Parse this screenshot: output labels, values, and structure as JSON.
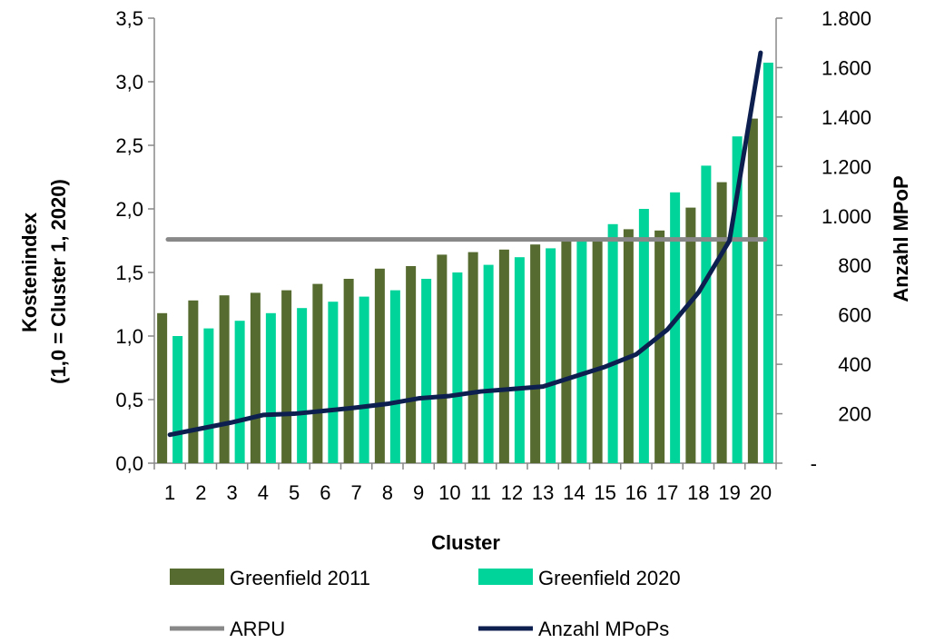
{
  "chart_data": {
    "type": "bar",
    "xlabel": "Cluster",
    "ylabel_lines": [
      "Kostenindex",
      "(1,0 = Cluster 1, 2020)"
    ],
    "y2label": "Anzahl MPoP",
    "categories": [
      "1",
      "2",
      "3",
      "4",
      "5",
      "6",
      "7",
      "8",
      "9",
      "10",
      "11",
      "12",
      "13",
      "14",
      "15",
      "16",
      "17",
      "18",
      "19",
      "20"
    ],
    "ylim": [
      0,
      3.5
    ],
    "y2lim": [
      0,
      1800
    ],
    "yticks": [
      0,
      0.5,
      1.0,
      1.5,
      2.0,
      2.5,
      3.0,
      3.5
    ],
    "ytick_labels": [
      "0,0",
      "0,5",
      "1,0",
      "1,5",
      "2,0",
      "2,5",
      "3,0",
      "3,5"
    ],
    "y2ticks": [
      0,
      200,
      400,
      600,
      800,
      1000,
      1200,
      1400,
      1600,
      1800
    ],
    "y2tick_labels": [
      "-",
      "200",
      "400",
      "600",
      "800",
      "1.000",
      "1.200",
      "1.400",
      "1.600",
      "1.800"
    ],
    "grid": false,
    "legend_placement": "bottom",
    "series": [
      {
        "name": "Greenfield 2011",
        "kind": "bar",
        "axis": "left",
        "color": "#556b2f",
        "values": [
          1.18,
          1.28,
          1.32,
          1.34,
          1.36,
          1.41,
          1.45,
          1.53,
          1.55,
          1.64,
          1.66,
          1.68,
          1.72,
          1.75,
          1.76,
          1.84,
          1.83,
          2.01,
          2.21,
          2.71
        ]
      },
      {
        "name": "Greenfield 2020",
        "kind": "bar",
        "axis": "left",
        "color": "#00d49a",
        "values": [
          1.0,
          1.06,
          1.12,
          1.18,
          1.22,
          1.27,
          1.31,
          1.36,
          1.45,
          1.5,
          1.56,
          1.62,
          1.69,
          1.77,
          1.88,
          2.0,
          2.13,
          2.34,
          2.57,
          3.15
        ]
      },
      {
        "name": "ARPU",
        "kind": "line",
        "axis": "left",
        "color": "#888888",
        "values": [
          1.76,
          1.76,
          1.76,
          1.76,
          1.76,
          1.76,
          1.76,
          1.76,
          1.76,
          1.76,
          1.76,
          1.76,
          1.76,
          1.76,
          1.76,
          1.76,
          1.76,
          1.76,
          1.76,
          1.76
        ]
      },
      {
        "name": "Anzahl MPoPs",
        "kind": "line",
        "axis": "right",
        "color": "#0d1f4f",
        "values": [
          115,
          140,
          165,
          195,
          200,
          212,
          225,
          240,
          262,
          272,
          290,
          300,
          310,
          350,
          390,
          440,
          540,
          690,
          900,
          1660
        ]
      }
    ]
  }
}
